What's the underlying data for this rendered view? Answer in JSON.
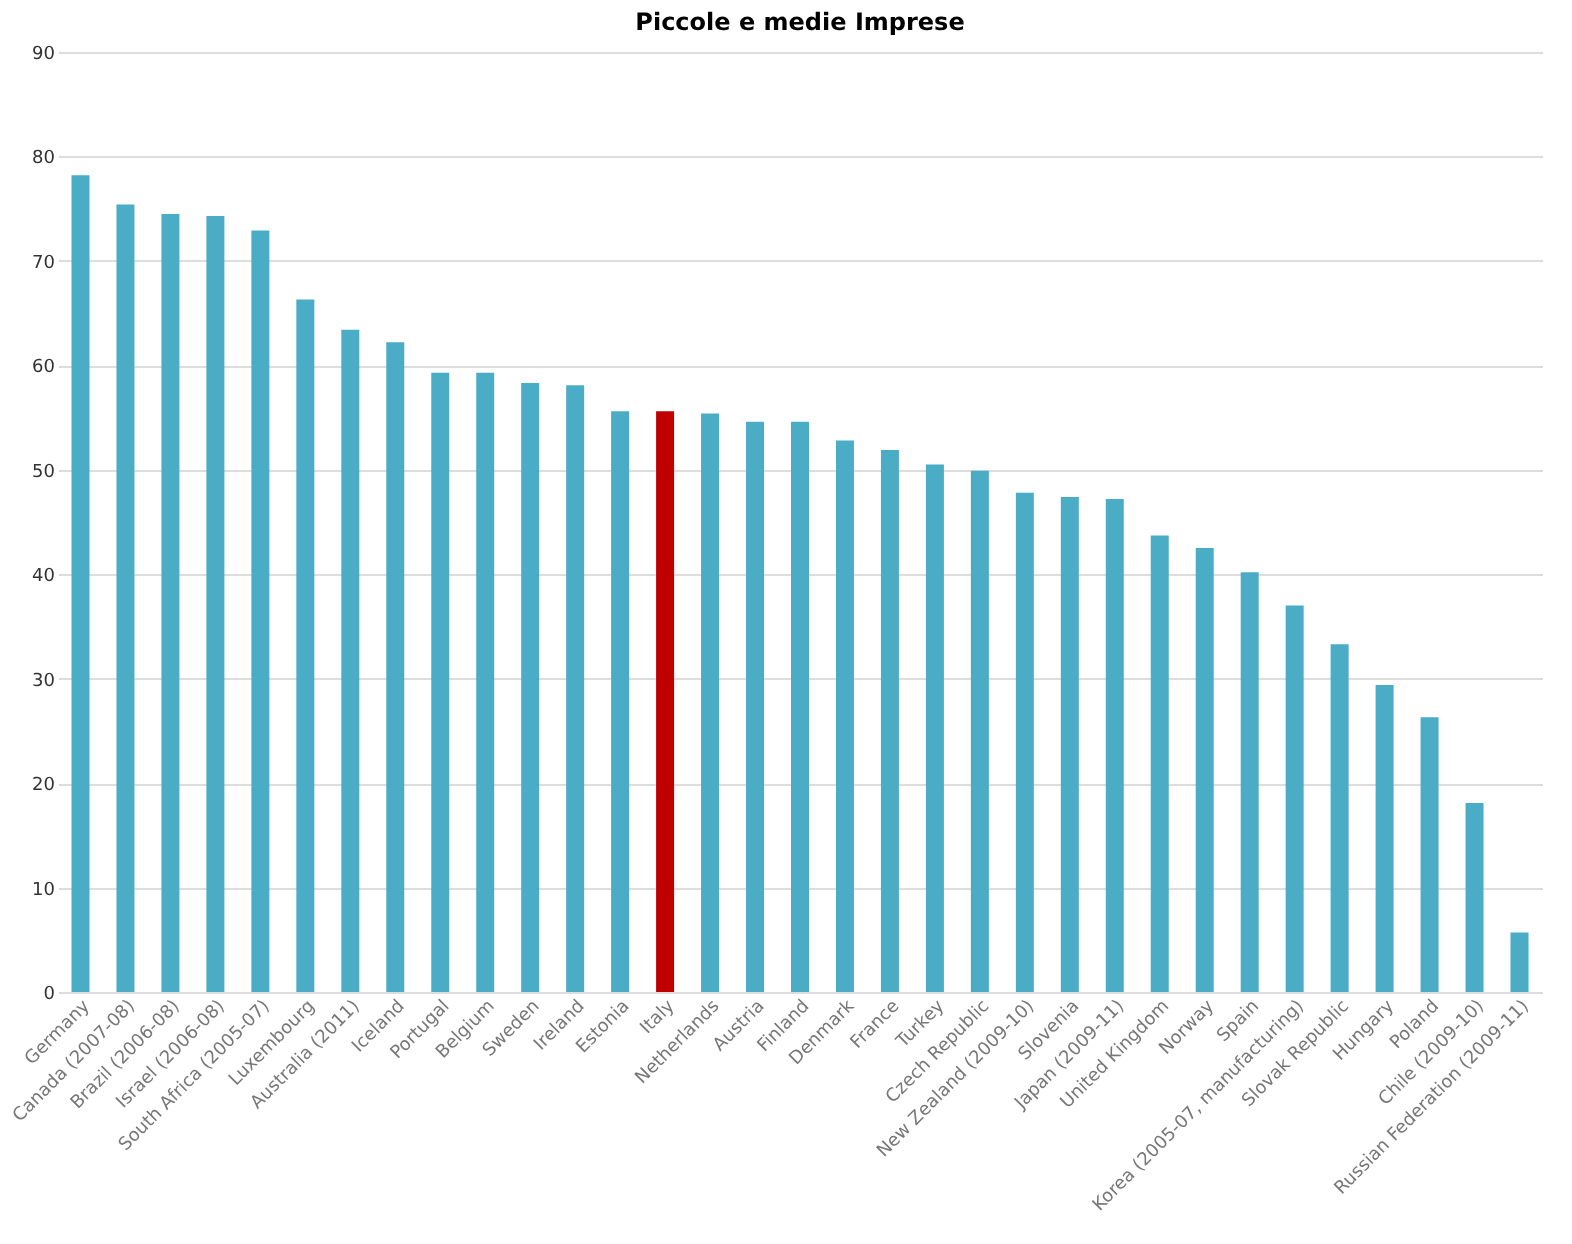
{
  "chart_data": {
    "type": "bar",
    "title": "Piccole e medie Imprese",
    "categories": [
      "Germany",
      "Canada (2007-08)",
      "Brazil (2006-08)",
      "Israel (2006-08)",
      "South Africa (2005-07)",
      "Luxembourg",
      "Australia (2011)",
      "Iceland",
      "Portugal",
      "Belgium",
      "Sweden",
      "Ireland",
      "Estonia",
      "Italy",
      "Netherlands",
      "Austria",
      "Finland",
      "Denmark",
      "France",
      "Turkey",
      "Czech Republic",
      "New Zealand (2009-10)",
      "Slovenia",
      "Japan (2009-11)",
      "United Kingdom",
      "Norway",
      "Spain",
      "Korea (2005-07, manufacturing)",
      "Slovak Republic",
      "Hungary",
      "Poland",
      "Chile (2009-10)",
      "Russian Federation (2009-11)"
    ],
    "values": [
      78.2,
      75.4,
      74.5,
      74.3,
      72.9,
      66.3,
      63.4,
      62.2,
      59.3,
      59.3,
      58.3,
      58.1,
      55.6,
      55.6,
      55.4,
      54.6,
      54.6,
      52.8,
      51.9,
      50.5,
      49.9,
      47.8,
      47.4,
      47.2,
      43.7,
      42.5,
      40.2,
      37.0,
      33.3,
      29.4,
      26.3,
      18.1,
      5.7
    ],
    "colors": [
      "#4bacc6",
      "#4bacc6",
      "#4bacc6",
      "#4bacc6",
      "#4bacc6",
      "#4bacc6",
      "#4bacc6",
      "#4bacc6",
      "#4bacc6",
      "#4bacc6",
      "#4bacc6",
      "#4bacc6",
      "#4bacc6",
      "#c00000",
      "#4bacc6",
      "#4bacc6",
      "#4bacc6",
      "#4bacc6",
      "#4bacc6",
      "#4bacc6",
      "#4bacc6",
      "#4bacc6",
      "#4bacc6",
      "#4bacc6",
      "#4bacc6",
      "#4bacc6",
      "#4bacc6",
      "#4bacc6",
      "#4bacc6",
      "#4bacc6",
      "#4bacc6",
      "#4bacc6",
      "#4bacc6"
    ],
    "ylim": [
      0,
      90
    ],
    "yticks": [
      0,
      10,
      20,
      30,
      40,
      50,
      60,
      70,
      80,
      90
    ],
    "grid": "y"
  }
}
